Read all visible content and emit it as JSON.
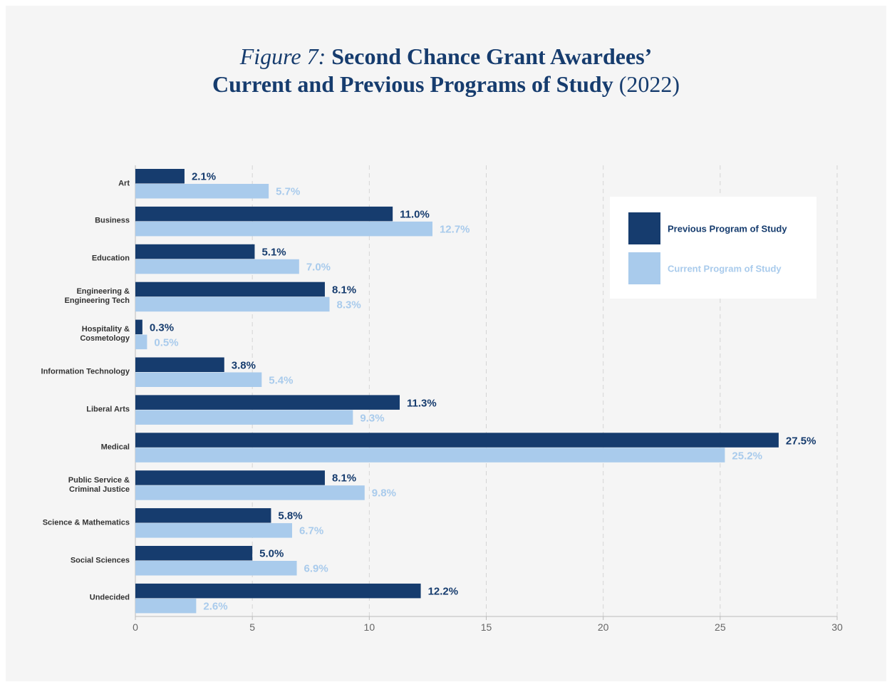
{
  "chart_data": {
    "type": "bar",
    "orientation": "horizontal",
    "title_label": "Figure 7:",
    "title": [
      "Second Chance Grant Awardees’",
      "Current and Previous Programs of Study"
    ],
    "title_year": "(2022)",
    "categories": [
      "Art",
      "Business",
      "Education",
      "Engineering &\nEngineering Tech",
      "Hospitality &\nCosmetology",
      "Information Technology",
      "Liberal Arts",
      "Medical",
      "Public Service &\nCriminal Justice",
      "Science & Mathematics",
      "Social Sciences",
      "Undecided"
    ],
    "series": [
      {
        "name": "Previous Program of Study",
        "color": "#163c6e",
        "values": [
          2.1,
          11.0,
          5.1,
          8.1,
          0.3,
          3.8,
          11.3,
          27.5,
          8.1,
          5.8,
          5.0,
          12.2
        ],
        "value_labels": [
          "2.1%",
          "11.0%",
          "5.1%",
          "8.1%",
          "0.3%",
          "3.8%",
          "11.3%",
          "27.5%",
          "8.1%",
          "5.8%",
          "5.0%",
          "12.2%"
        ]
      },
      {
        "name": "Current Program of Study",
        "color": "#a9cbec",
        "values": [
          5.7,
          12.7,
          7.0,
          8.3,
          0.5,
          5.4,
          9.3,
          25.2,
          9.8,
          6.7,
          6.9,
          2.6
        ],
        "value_labels": [
          "5.7%",
          "12.7%",
          "7.0%",
          "8.3%",
          "0.5%",
          "5.4%",
          "9.3%",
          "25.2%",
          "9.8%",
          "6.7%",
          "6.9%",
          "2.6%"
        ]
      }
    ],
    "xlim": [
      0,
      30
    ],
    "xticks": [
      0,
      5,
      10,
      15,
      20,
      25,
      30
    ],
    "grid": true,
    "legend": "upper right"
  }
}
